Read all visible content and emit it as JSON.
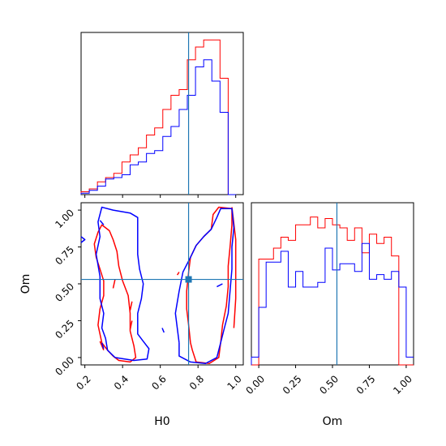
{
  "colors": {
    "series_a": "#ff0000",
    "series_b": "#0000ff",
    "truth": "#1f77b4"
  },
  "labels": {
    "x_param_1": "H0",
    "x_param_2": "Om",
    "y_param_2": "Om"
  },
  "chart_data": [
    {
      "type": "histogram",
      "panel": "H0 marginal",
      "xlim": [
        0.18,
        1.04
      ],
      "bin_edges": [
        0.18,
        0.2233,
        0.2667,
        0.31,
        0.3533,
        0.3967,
        0.44,
        0.4833,
        0.5267,
        0.57,
        0.6133,
        0.6567,
        0.7,
        0.7433,
        0.7867,
        0.83,
        0.8733,
        0.9167,
        0.96,
        1.0033
      ],
      "series": [
        {
          "name": "",
          "color": "#ff0000",
          "values": [
            2,
            4,
            9,
            12,
            15,
            23,
            28,
            33,
            42,
            47,
            60,
            70,
            74,
            95,
            104,
            109,
            109,
            82,
            0
          ]
        },
        {
          "name": "",
          "color": "#0000ff",
          "values": [
            1,
            3,
            6,
            11,
            12,
            14,
            21,
            23,
            29,
            31,
            41,
            48,
            60,
            70,
            90,
            95,
            80,
            58,
            0
          ]
        }
      ],
      "truth": 0.75,
      "ticks": [
        0.2,
        0.4,
        0.6,
        0.8,
        1.0
      ]
    },
    {
      "type": "contour",
      "panel": "H0 vs Om",
      "xlabel": "H0",
      "ylabel": "Om",
      "xlim": [
        0.18,
        1.04
      ],
      "ylim": [
        -0.05,
        1.05
      ],
      "xticks": [
        "0.2",
        "0.4",
        "0.6",
        "0.8",
        "1.0"
      ],
      "yticks": [
        "0.00",
        "0.25",
        "0.50",
        "0.75",
        "1.00"
      ],
      "ytick_values": [
        0,
        0.25,
        0.5,
        0.75,
        1.0
      ],
      "xtick_values": [
        0.2,
        0.4,
        0.6,
        0.8,
        1.0
      ],
      "truth": [
        0.75,
        0.53
      ],
      "series": [
        {
          "name": "",
          "color": "#ff0000",
          "contours": [
            [
              [
                0.29,
                0.1
              ],
              [
                0.32,
                0.05
              ],
              [
                0.35,
                0.01
              ],
              [
                0.38,
                -0.02
              ],
              [
                0.44,
                -0.03
              ],
              [
                0.47,
                0.0
              ],
              [
                0.46,
                0.08
              ],
              [
                0.44,
                0.18
              ],
              [
                0.44,
                0.3
              ],
              [
                0.43,
                0.42
              ],
              [
                0.4,
                0.52
              ],
              [
                0.38,
                0.62
              ],
              [
                0.37,
                0.72
              ],
              [
                0.35,
                0.8
              ],
              [
                0.33,
                0.86
              ],
              [
                0.29,
                0.9
              ],
              [
                0.27,
                0.85
              ],
              [
                0.25,
                0.77
              ],
              [
                0.26,
                0.68
              ],
              [
                0.28,
                0.6
              ],
              [
                0.3,
                0.52
              ],
              [
                0.3,
                0.42
              ],
              [
                0.28,
                0.33
              ],
              [
                0.27,
                0.22
              ],
              [
                0.29,
                0.1
              ]
            ],
            [
              [
                0.76,
                0.1
              ],
              [
                0.77,
                0.05
              ],
              [
                0.79,
                -0.03
              ],
              [
                0.86,
                -0.04
              ],
              [
                0.91,
                0.0
              ],
              [
                0.92,
                0.1
              ],
              [
                0.93,
                0.22
              ],
              [
                0.95,
                0.35
              ],
              [
                0.96,
                0.48
              ],
              [
                0.96,
                0.62
              ],
              [
                0.97,
                0.75
              ],
              [
                0.98,
                0.9
              ],
              [
                0.98,
                1.01
              ],
              [
                0.91,
                1.02
              ],
              [
                0.88,
                0.97
              ],
              [
                0.87,
                0.87
              ],
              [
                0.83,
                0.82
              ],
              [
                0.79,
                0.76
              ],
              [
                0.76,
                0.68
              ],
              [
                0.75,
                0.58
              ],
              [
                0.74,
                0.45
              ],
              [
                0.74,
                0.33
              ],
              [
                0.75,
                0.22
              ],
              [
                0.76,
                0.1
              ]
            ],
            [
              [
                0.98,
                1.02
              ],
              [
                1.0,
                0.8
              ],
              [
                1.0,
                0.4
              ],
              [
                0.99,
                0.2
              ]
            ],
            [
              [
                0.45,
                0.38
              ],
              [
                0.44,
                0.32
              ]
            ],
            [
              [
                0.45,
                0.25
              ],
              [
                0.44,
                0.19
              ]
            ],
            [
              [
                0.69,
                0.56
              ],
              [
                0.7,
                0.58
              ]
            ],
            [
              [
                0.35,
                0.47
              ],
              [
                0.36,
                0.53
              ]
            ],
            [
              [
                0.28,
                0.11
              ],
              [
                0.3,
                0.05
              ]
            ]
          ]
        },
        {
          "name": "",
          "color": "#0000ff",
          "contours": [
            [
              [
                0.31,
                0.13
              ],
              [
                0.32,
                0.05
              ],
              [
                0.36,
                0.0
              ],
              [
                0.46,
                -0.02
              ],
              [
                0.53,
                -0.01
              ],
              [
                0.54,
                0.06
              ],
              [
                0.51,
                0.11
              ],
              [
                0.48,
                0.16
              ],
              [
                0.48,
                0.3
              ],
              [
                0.5,
                0.4
              ],
              [
                0.51,
                0.5
              ],
              [
                0.49,
                0.6
              ],
              [
                0.48,
                0.7
              ],
              [
                0.48,
                0.82
              ],
              [
                0.48,
                0.95
              ],
              [
                0.44,
                0.98
              ],
              [
                0.35,
                1.0
              ],
              [
                0.29,
                1.02
              ],
              [
                0.27,
                0.92
              ],
              [
                0.28,
                0.82
              ],
              [
                0.26,
                0.7
              ],
              [
                0.28,
                0.55
              ],
              [
                0.28,
                0.4
              ],
              [
                0.3,
                0.3
              ],
              [
                0.29,
                0.2
              ],
              [
                0.31,
                0.13
              ]
            ],
            [
              [
                0.7,
                0.1
              ],
              [
                0.7,
                0.01
              ],
              [
                0.76,
                -0.03
              ],
              [
                0.84,
                -0.04
              ],
              [
                0.9,
                0.0
              ],
              [
                0.92,
                0.1
              ],
              [
                0.94,
                0.2
              ],
              [
                0.96,
                0.3
              ],
              [
                0.97,
                0.45
              ],
              [
                0.98,
                0.6
              ],
              [
                0.98,
                0.75
              ],
              [
                0.99,
                0.88
              ],
              [
                0.98,
                1.01
              ],
              [
                0.92,
                1.01
              ],
              [
                0.9,
                0.95
              ],
              [
                0.87,
                0.87
              ],
              [
                0.83,
                0.82
              ],
              [
                0.79,
                0.76
              ],
              [
                0.76,
                0.68
              ],
              [
                0.72,
                0.58
              ],
              [
                0.7,
                0.45
              ],
              [
                0.68,
                0.3
              ],
              [
                0.69,
                0.2
              ],
              [
                0.7,
                0.1
              ]
            ],
            [
              [
                0.18,
                0.82
              ],
              [
                0.2,
                0.8
              ],
              [
                0.18,
                0.78
              ]
            ],
            [
              [
                0.28,
                0.93
              ],
              [
                0.3,
                0.9
              ]
            ],
            [
              [
                0.61,
                0.2
              ],
              [
                0.62,
                0.17
              ]
            ],
            [
              [
                0.9,
                0.48
              ],
              [
                0.93,
                0.5
              ]
            ],
            [
              [
                0.29,
                0.1
              ],
              [
                0.3,
                0.06
              ]
            ]
          ]
        }
      ]
    },
    {
      "type": "histogram",
      "panel": "Om marginal",
      "xlabel": "Om",
      "xlim": [
        -0.05,
        1.05
      ],
      "bin_edges": [
        -0.05,
        0.0,
        0.05,
        0.1,
        0.15,
        0.2,
        0.25,
        0.3,
        0.35,
        0.4,
        0.45,
        0.5,
        0.55,
        0.6,
        0.65,
        0.7,
        0.75,
        0.8,
        0.85,
        0.9,
        0.95,
        1.0,
        1.05
      ],
      "xticks": [
        "0.00",
        "0.25",
        "0.50",
        "0.75",
        "1.00"
      ],
      "xtick_values": [
        0,
        0.25,
        0.5,
        0.75,
        1.0
      ],
      "series": [
        {
          "name": "",
          "color": "#ff0000",
          "values": [
            0,
            68,
            68,
            75,
            82,
            80,
            90,
            90,
            95,
            88,
            94,
            90,
            88,
            80,
            88,
            72,
            84,
            78,
            82,
            70,
            0,
            0
          ]
        },
        {
          "name": "",
          "color": "#0000ff",
          "values": [
            5,
            37,
            66,
            66,
            73,
            50,
            60,
            50,
            50,
            53,
            75,
            61,
            65,
            65,
            60,
            78,
            55,
            58,
            55,
            60,
            50,
            5
          ]
        }
      ],
      "truth": 0.53
    }
  ]
}
